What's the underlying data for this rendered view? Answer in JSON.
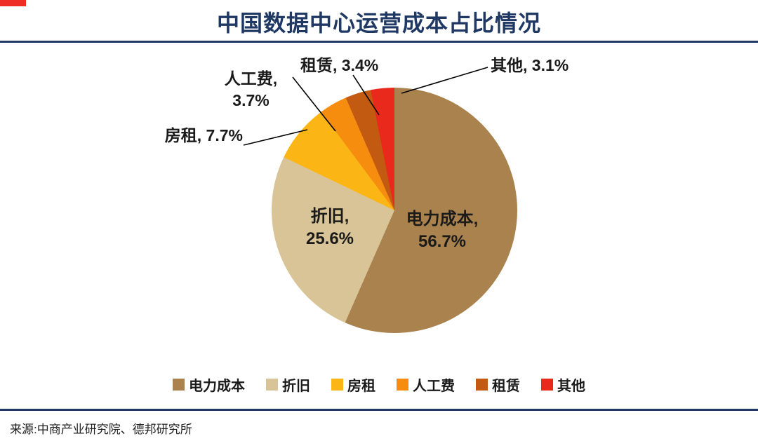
{
  "title": "中国数据中心运营成本占比情况",
  "source": "来源:中商产业研究院、德邦研究所",
  "colors": {
    "navy": "#1F3864",
    "corner_red": "#EE2E24"
  },
  "chart_data": {
    "type": "pie",
    "title": "中国数据中心运营成本占比情况",
    "start_angle_deg": 0,
    "direction": "clockwise",
    "legend_position": "bottom",
    "slices": [
      {
        "label": "电力成本",
        "value": 56.7,
        "color": "#A9824E",
        "label_position": "inside"
      },
      {
        "label": "折旧",
        "value": 25.6,
        "color": "#D8C496",
        "label_position": "inside"
      },
      {
        "label": "房租",
        "value": 7.7,
        "color": "#FBB616",
        "label_position": "outside"
      },
      {
        "label": "人工费",
        "value": 3.7,
        "color": "#F78D0E",
        "label_position": "outside"
      },
      {
        "label": "租赁",
        "value": 3.4,
        "color": "#C25A11",
        "label_position": "outside"
      },
      {
        "label": "其他",
        "value": 3.1,
        "color": "#E8291B",
        "label_position": "outside"
      }
    ]
  },
  "callouts": {
    "dianli": {
      "line1": "电力成本,",
      "line2": "56.7%"
    },
    "zhejiu": {
      "line1": "折旧,",
      "line2": "25.6%"
    },
    "fangzu": {
      "text": "房租, 7.7%"
    },
    "rengong": {
      "line1": "人工费,",
      "line2": "3.7%"
    },
    "zulin": {
      "text": "租赁, 3.4%"
    },
    "qita": {
      "text": "其他, 3.1%"
    }
  }
}
